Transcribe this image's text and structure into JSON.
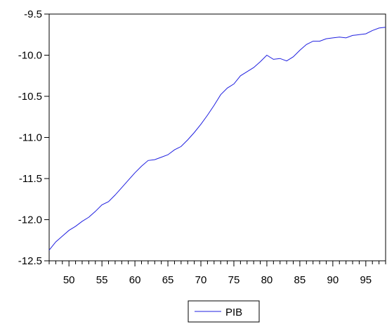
{
  "chart_data": {
    "type": "line",
    "title": "",
    "xlabel": "",
    "ylabel": "",
    "xlim": [
      1947,
      1998
    ],
    "ylim": [
      -12.5,
      -9.5
    ],
    "y_ticks": [
      -12.5,
      -12.0,
      -11.5,
      -11.0,
      -10.5,
      -10.0,
      -9.5
    ],
    "y_tick_labels": [
      "-12.5",
      "-12.0",
      "-11.5",
      "-11.0",
      "-10.5",
      "-10.0",
      "-9.5"
    ],
    "x_ticks": [
      1950,
      1955,
      1960,
      1965,
      1970,
      1975,
      1980,
      1985,
      1990,
      1995
    ],
    "x_tick_labels": [
      "50",
      "55",
      "60",
      "65",
      "70",
      "75",
      "80",
      "85",
      "90",
      "95"
    ],
    "grid": false,
    "legend_position": "bottom-center",
    "colors": {
      "series": "#2020e0",
      "axis": "#000000",
      "background": "#ffffff"
    },
    "series": [
      {
        "name": "PIB",
        "x": [
          1947,
          1948,
          1949,
          1950,
          1951,
          1952,
          1953,
          1954,
          1955,
          1956,
          1957,
          1958,
          1959,
          1960,
          1961,
          1962,
          1963,
          1964,
          1965,
          1966,
          1967,
          1968,
          1969,
          1970,
          1971,
          1972,
          1973,
          1974,
          1975,
          1976,
          1977,
          1978,
          1979,
          1980,
          1981,
          1982,
          1983,
          1984,
          1985,
          1986,
          1987,
          1988,
          1989,
          1990,
          1991,
          1992,
          1993,
          1994,
          1995,
          1996,
          1997,
          1998
        ],
        "values": [
          -12.37,
          -12.27,
          -12.2,
          -12.13,
          -12.08,
          -12.02,
          -11.97,
          -11.9,
          -11.82,
          -11.78,
          -11.7,
          -11.61,
          -11.52,
          -11.43,
          -11.35,
          -11.28,
          -11.27,
          -11.24,
          -11.21,
          -11.15,
          -11.11,
          -11.03,
          -10.94,
          -10.84,
          -10.73,
          -10.61,
          -10.48,
          -10.4,
          -10.35,
          -10.25,
          -10.2,
          -10.15,
          -10.08,
          -10.0,
          -10.05,
          -10.04,
          -10.07,
          -10.02,
          -9.94,
          -9.87,
          -9.83,
          -9.83,
          -9.8,
          -9.79,
          -9.78,
          -9.79,
          -9.76,
          -9.75,
          -9.74,
          -9.7,
          -9.67,
          -9.66
        ]
      }
    ]
  }
}
